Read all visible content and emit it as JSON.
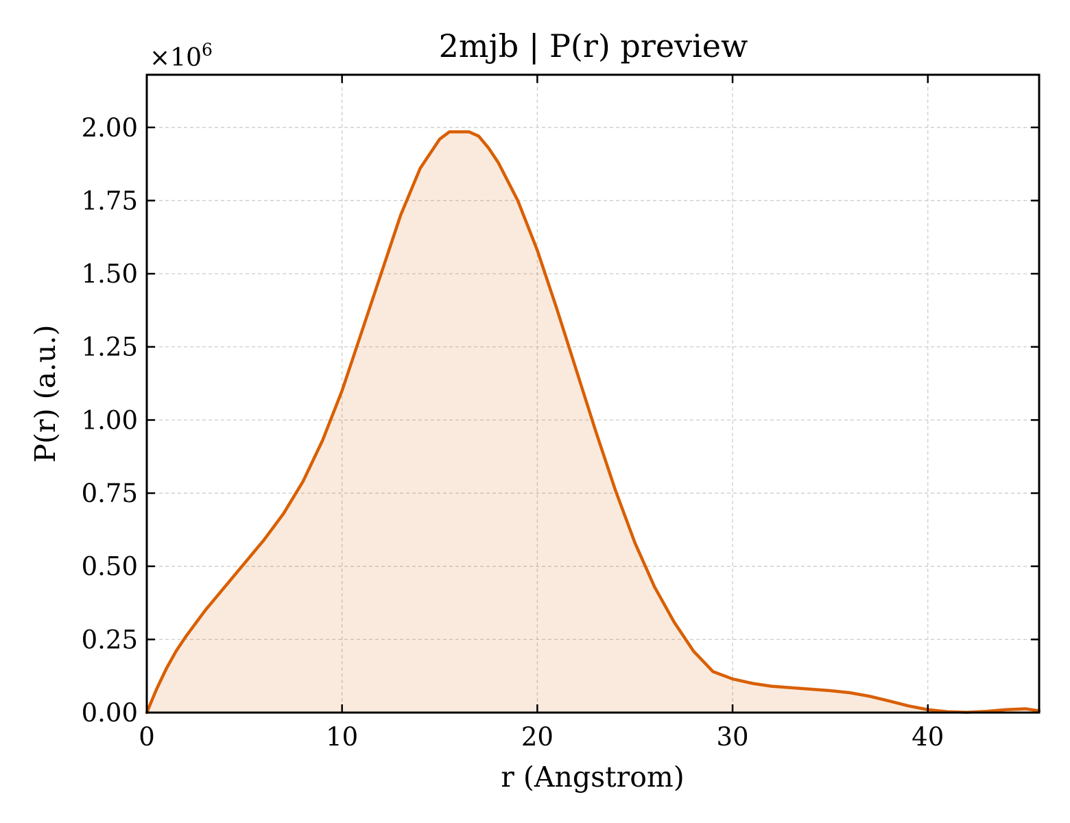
{
  "chart_data": {
    "type": "area",
    "title": "2mjb | P(r) preview",
    "xlabel": "r (Angstrom)",
    "ylabel": "P(r) (a.u.)",
    "y_multiplier_label": "×10",
    "y_multiplier_exponent": "6",
    "xlim": [
      0,
      45.7
    ],
    "ylim": [
      0,
      2.18
    ],
    "x_ticks": [
      0,
      10,
      20,
      30,
      40
    ],
    "x_tick_labels": [
      "0",
      "10",
      "20",
      "30",
      "40"
    ],
    "y_ticks": [
      0,
      0.25,
      0.5,
      0.75,
      1.0,
      1.25,
      1.5,
      1.75,
      2.0
    ],
    "y_tick_labels": [
      "0.00",
      "0.25",
      "0.50",
      "0.75",
      "1.00",
      "1.25",
      "1.50",
      "1.75",
      "2.00"
    ],
    "grid": true,
    "colors": {
      "line": "#d95f02",
      "fill": "#d95f02",
      "grid": "#cccccc",
      "axis": "#000000"
    },
    "series": [
      {
        "x": [
          0,
          0.5,
          1,
          1.5,
          2,
          3,
          4,
          5,
          6,
          7,
          8,
          9,
          10,
          11,
          12,
          13,
          14,
          15,
          15.5,
          16,
          16.5,
          17,
          17.5,
          18,
          19,
          20,
          21,
          22,
          23,
          24,
          25,
          26,
          27,
          28,
          29,
          30,
          31,
          32,
          33,
          34,
          35,
          36,
          37,
          38,
          39,
          40,
          41,
          42,
          43,
          44,
          45,
          45.7
        ],
        "y": [
          0,
          0.08,
          0.15,
          0.21,
          0.26,
          0.35,
          0.43,
          0.51,
          0.59,
          0.68,
          0.79,
          0.93,
          1.1,
          1.3,
          1.5,
          1.7,
          1.86,
          1.96,
          1.985,
          1.985,
          1.985,
          1.97,
          1.93,
          1.88,
          1.75,
          1.58,
          1.38,
          1.17,
          0.96,
          0.76,
          0.58,
          0.43,
          0.31,
          0.21,
          0.14,
          0.115,
          0.1,
          0.09,
          0.085,
          0.08,
          0.075,
          0.068,
          0.056,
          0.04,
          0.023,
          0.01,
          0.003,
          0.001,
          0.004,
          0.01,
          0.013,
          0.006
        ]
      }
    ]
  }
}
